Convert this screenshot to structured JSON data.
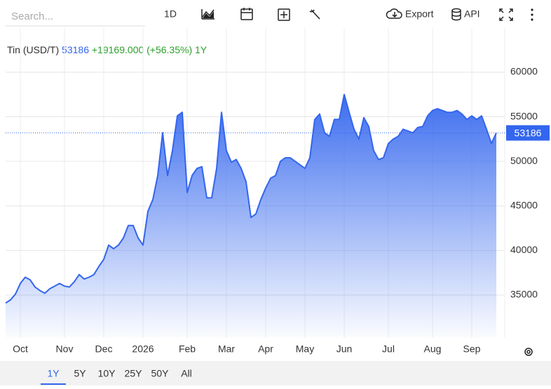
{
  "search_placeholder": "Search...",
  "toolbar": [
    "1D",
    "Export",
    "API"
  ],
  "ranges": [
    "1Y",
    "5Y",
    "10Y",
    "25Y",
    "50Y",
    "All"
  ],
  "chart_data": {
    "type": "area",
    "title": "Tin (USD/T)",
    "last_value": 53186,
    "change": "+19169.000 (+56.35%)",
    "period": "1Y",
    "color": "#3366ee",
    "grid": true,
    "categories": [
      null,
      null,
      null,
      "Oct",
      null,
      null,
      null,
      null,
      null,
      null,
      null,
      null,
      "Nov",
      null,
      null,
      null,
      null,
      null,
      null,
      null,
      "Dec",
      null,
      null,
      null,
      null,
      null,
      null,
      null,
      "2026",
      null,
      null,
      null,
      null,
      null,
      null,
      null,
      null,
      "Feb",
      null,
      null,
      null,
      null,
      null,
      null,
      null,
      "Mar",
      null,
      null,
      null,
      null,
      null,
      null,
      null,
      "Apr",
      null,
      null,
      null,
      null,
      null,
      null,
      null,
      "May",
      null,
      null,
      null,
      null,
      null,
      null,
      null,
      "Jun",
      null,
      null,
      null,
      null,
      null,
      null,
      null,
      null,
      "Jul",
      null,
      null,
      null,
      null,
      null,
      null,
      null,
      null,
      "Aug",
      null,
      null,
      null,
      null,
      null,
      null,
      null,
      "Sep",
      null,
      null,
      null,
      null,
      null
    ],
    "values": [
      34100,
      34450,
      35100,
      36300,
      37000,
      36700,
      35900,
      35500,
      35200,
      35700,
      36000,
      36300,
      36000,
      35900,
      36500,
      37300,
      36800,
      37000,
      37300,
      38200,
      39000,
      40600,
      40200,
      40600,
      41400,
      42800,
      42800,
      41400,
      40600,
      44400,
      45700,
      48400,
      53200,
      48400,
      51200,
      55100,
      55500,
      46500,
      48400,
      49200,
      49400,
      45900,
      45900,
      49200,
      55500,
      51200,
      49900,
      50200,
      49200,
      47700,
      43700,
      44100,
      45700,
      47000,
      48100,
      48400,
      50000,
      50400,
      50400,
      50000,
      49600,
      49200,
      50400,
      54700,
      55300,
      53200,
      52800,
      54700,
      54700,
      57500,
      55500,
      53600,
      52500,
      54900,
      53900,
      51200,
      50200,
      50400,
      52000,
      52500,
      52800,
      53600,
      53400,
      53200,
      53800,
      53900,
      55100,
      55700,
      55900,
      55700,
      55500,
      55500,
      55700,
      55300,
      54700,
      55100,
      54700,
      55100,
      53600,
      52000,
      53186
    ],
    "ylim": [
      30200,
      64950
    ],
    "yticks": [
      35000,
      40000,
      45000,
      50000,
      55000,
      60000
    ]
  }
}
